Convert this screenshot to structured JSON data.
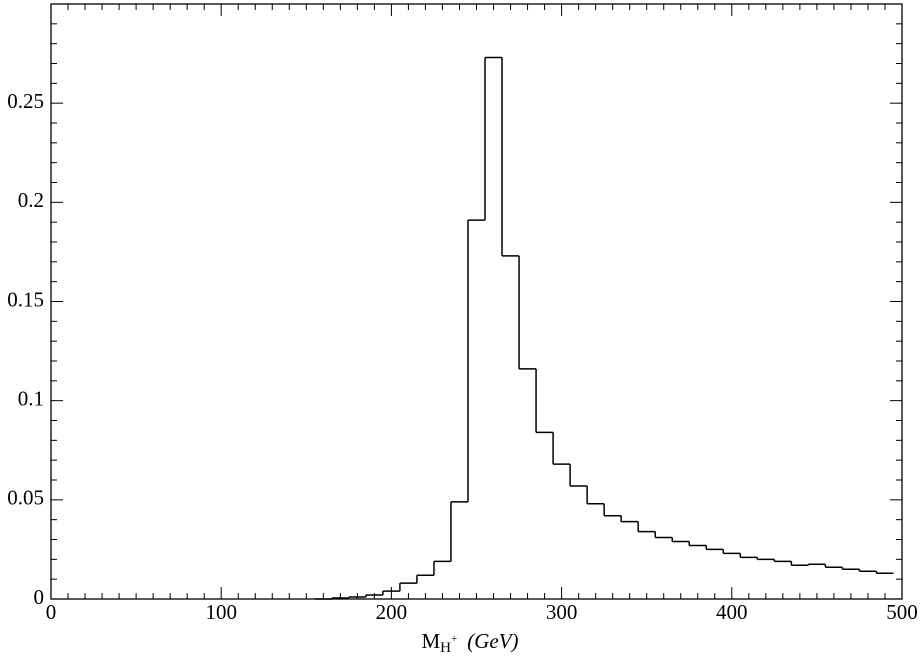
{
  "chart_data": {
    "type": "histogram",
    "x_label": {
      "base": "M",
      "sub": "H",
      "sup": "+",
      "unit": "(GeV)"
    },
    "bins": [
      155,
      165,
      175,
      185,
      195,
      205,
      215,
      225,
      235,
      245,
      255,
      265,
      275,
      285,
      295,
      305,
      315,
      325,
      335,
      345,
      355,
      365,
      375,
      385,
      395,
      405,
      415,
      425,
      435,
      445,
      455,
      465,
      475,
      485,
      495
    ],
    "values": [
      0,
      0.0005,
      0.001,
      0.002,
      0.004,
      0.008,
      0.012,
      0.019,
      0.049,
      0.191,
      0.273,
      0.173,
      0.116,
      0.084,
      0.068,
      0.057,
      0.048,
      0.042,
      0.039,
      0.034,
      0.031,
      0.029,
      0.027,
      0.025,
      0.023,
      0.021,
      0.02,
      0.019,
      0.017,
      0.0175,
      0.016,
      0.015,
      0.014,
      0.013
    ],
    "color": "#000000",
    "xlim": [
      0,
      500
    ],
    "xticks": [
      0,
      100,
      200,
      300,
      400,
      500
    ],
    "ylim": [
      0,
      0.3
    ],
    "yticks": [
      0,
      0.05,
      0.1,
      0.15,
      0.2,
      0.25
    ]
  }
}
